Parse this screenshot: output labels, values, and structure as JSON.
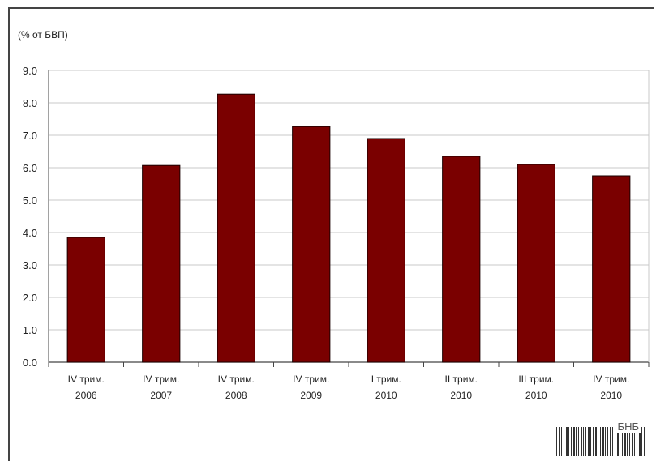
{
  "chart_data": {
    "type": "bar",
    "unit_label": "(% от БВП)",
    "categories": [
      [
        "IV трим.",
        "2006"
      ],
      [
        "IV трим.",
        "2007"
      ],
      [
        "IV трим.",
        "2008"
      ],
      [
        "IV трим.",
        "2009"
      ],
      [
        "I трим.",
        "2010"
      ],
      [
        "II трим.",
        "2010"
      ],
      [
        "III трим.",
        "2010"
      ],
      [
        "IV трим.",
        "2010"
      ]
    ],
    "values": [
      3.85,
      6.07,
      8.27,
      7.27,
      6.9,
      6.35,
      6.1,
      5.75
    ],
    "ylim": [
      0,
      9
    ],
    "yticks": [
      "0.0",
      "1.0",
      "2.0",
      "3.0",
      "4.0",
      "5.0",
      "6.0",
      "7.0",
      "8.0",
      "9.0"
    ],
    "grid": true,
    "bar_color": "#7a0000",
    "grid_color": "#c8c8c8"
  },
  "stamp": {
    "text": "БНБ"
  }
}
